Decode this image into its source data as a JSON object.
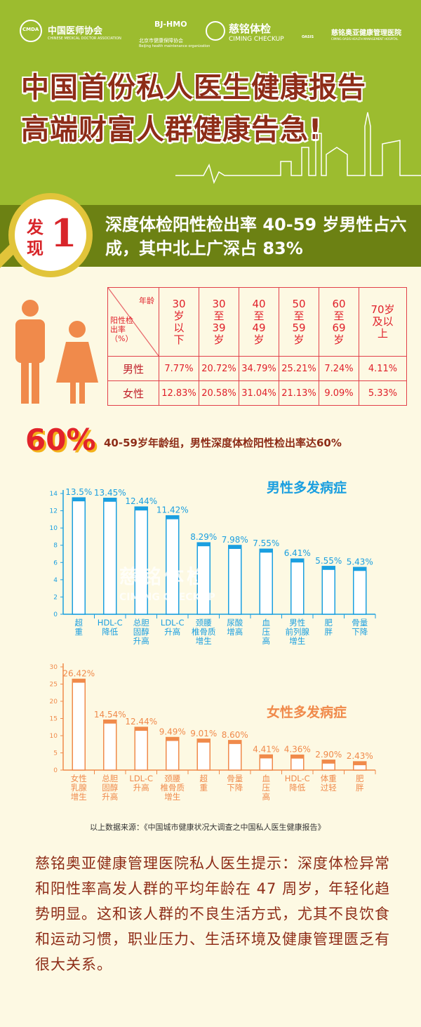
{
  "header": {
    "logos": [
      {
        "name": "中国医师协会",
        "sub": "CHINESE MEDICAL DOCTOR ASSOCIATION",
        "badge": "CMDA"
      },
      {
        "name": "BJ-HMO",
        "sub": "北京市健康保障协会",
        "sub2": "Beijing health maintenance organization"
      },
      {
        "name": "慈铭体检",
        "sub": "CIMING CHECKUP"
      },
      {
        "name": "慈铭奥亚健康管理医院",
        "sub": "CIMING OASIS HEALTH MANAGEMENT HOSPITAL",
        "badge": "OASIS"
      }
    ],
    "title_line1": "中国首份私人医生健康报告",
    "title_line2": "高端财富人群健康告急!"
  },
  "finding": {
    "label_a": "发",
    "label_b": "现",
    "number": "1",
    "text": "深度体检阳性检出率 40-59 岁男性占六成，其中北上广深占 83%"
  },
  "table": {
    "corner_top": "年龄",
    "corner_bottom": "阳性检出率（%）",
    "columns": [
      "30岁以下",
      "30至39岁",
      "40至49岁",
      "50至59岁",
      "60至69岁",
      "70岁及以上"
    ],
    "rows": [
      {
        "label": "男性",
        "values": [
          "7.77%",
          "20.72%",
          "34.79%",
          "25.21%",
          "7.24%",
          "4.11%"
        ]
      },
      {
        "label": "女性",
        "values": [
          "12.83%",
          "20.58%",
          "31.04%",
          "21.13%",
          "9.09%",
          "5.33%"
        ]
      }
    ]
  },
  "highlight": {
    "value": "60%",
    "text": "40-59岁年龄组，男性深度体检阳性检出率达60%"
  },
  "watermark": {
    "cn": "慈铭体检",
    "en": "CIMING CHECKUP"
  },
  "chart_data": [
    {
      "type": "bar",
      "title": "男性多发病症",
      "color": "#1a9fe0",
      "ylim": [
        0,
        14
      ],
      "yticks": [
        0,
        2,
        4,
        6,
        8,
        10,
        12,
        14
      ],
      "categories": [
        "超重",
        "HDL-C降低",
        "总胆固醇升高",
        "LDL-C升高",
        "颈腰椎骨质增生",
        "尿酸增高",
        "血压高",
        "男性前列腺增生",
        "肥胖",
        "骨量下降"
      ],
      "label_lines": [
        [
          "超",
          "重"
        ],
        [
          "HDL-C",
          "降低"
        ],
        [
          "总胆",
          "固醇",
          "升高"
        ],
        [
          "LDL-C",
          "升高"
        ],
        [
          "颈腰",
          "椎骨质",
          "增生"
        ],
        [
          "尿酸",
          "增高"
        ],
        [
          "血",
          "压",
          "高"
        ],
        [
          "男性",
          "前列腺",
          "增生"
        ],
        [
          "肥",
          "胖"
        ],
        [
          "骨量",
          "下降"
        ]
      ],
      "values": [
        13.5,
        13.45,
        12.44,
        11.42,
        8.29,
        7.98,
        7.55,
        6.41,
        5.55,
        5.43
      ],
      "data_labels": [
        "13.5%",
        "13.45%",
        "12.44%",
        "11.42%",
        "8.29%",
        "7.98%",
        "7.55%",
        "6.41%",
        "5.55%",
        "5.43%"
      ]
    },
    {
      "type": "bar",
      "title": "女性多发病症",
      "color": "#f08a4b",
      "ylim": [
        0,
        30
      ],
      "yticks": [
        0,
        5,
        10,
        15,
        20,
        25,
        30
      ],
      "categories": [
        "女性乳腺增生",
        "总胆固醇升高",
        "LDL-C升高",
        "颈腰椎骨质增生",
        "超重",
        "骨量下降",
        "血压高",
        "HDL-C降低",
        "体重过轻",
        "肥胖"
      ],
      "label_lines": [
        [
          "女性",
          "乳腺",
          "增生"
        ],
        [
          "总胆",
          "固醇",
          "升高"
        ],
        [
          "LDL-C",
          "升高"
        ],
        [
          "颈腰",
          "椎骨质",
          "增生"
        ],
        [
          "超",
          "重"
        ],
        [
          "骨量",
          "下降"
        ],
        [
          "血",
          "压",
          "高"
        ],
        [
          "HDL-C",
          "降低"
        ],
        [
          "体重",
          "过轻"
        ],
        [
          "肥",
          "胖"
        ]
      ],
      "values": [
        26.42,
        14.54,
        12.44,
        9.49,
        9.01,
        8.6,
        4.41,
        4.36,
        2.9,
        2.43
      ],
      "data_labels": [
        "26.42%",
        "14.54%",
        "12.44%",
        "9.49%",
        "9.01%",
        "8.60%",
        "4.41%",
        "4.36%",
        "2.90%",
        "2.43%"
      ]
    }
  ],
  "source": "以上数据来源：《中国城市健康状况大调查之中国私人医生健康报告》",
  "tip": "慈铭奥亚健康管理医院私人医生提示：深度体检异常和阳性率高发人群的平均年龄在 47 周岁，年轻化趋势明显。这和该人群的不良生活方式，尤其不良饮食和运动习惯，职业压力、生活环境及健康管理匮乏有很大关系。"
}
